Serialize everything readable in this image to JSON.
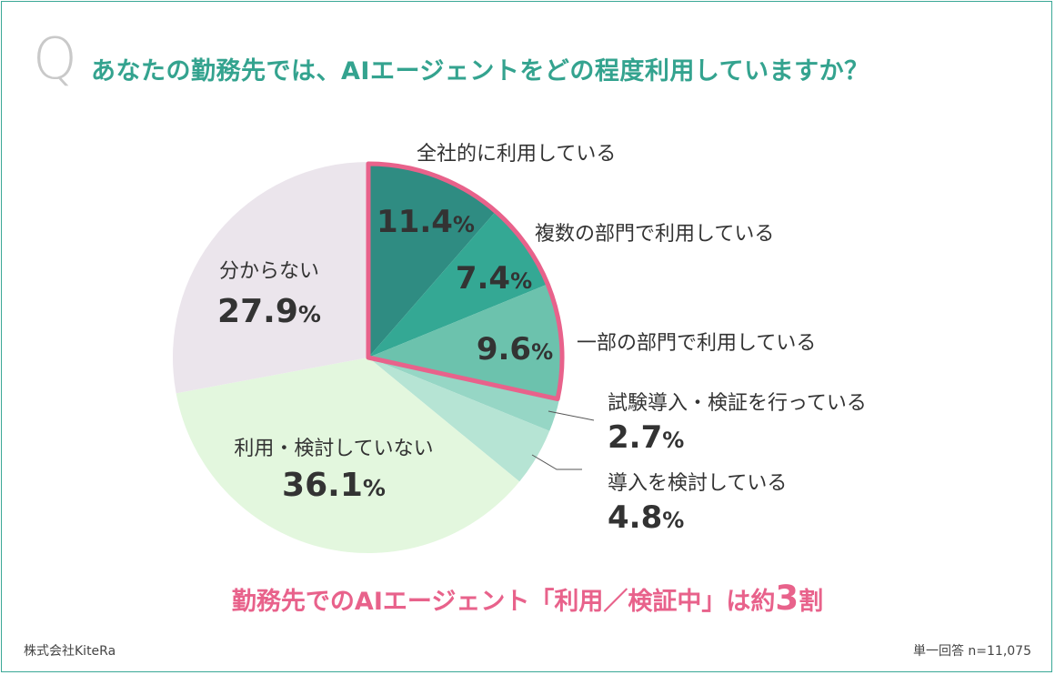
{
  "question": {
    "mark": "Q",
    "text": "あなたの勤務先では、AIエージェントをどの程度利用していますか？"
  },
  "chart_data": {
    "type": "pie",
    "start_angle_deg": 0,
    "direction": "clockwise",
    "slices": [
      {
        "label": "全社的に利用している",
        "value": 11.4,
        "display": "11.4",
        "unit": "%",
        "color": "#2f8c82"
      },
      {
        "label": "複数の部門で利用している",
        "value": 7.4,
        "display": "7.4",
        "unit": "%",
        "color": "#34a894"
      },
      {
        "label": "一部の部門で利用している",
        "value": 9.6,
        "display": "9.6",
        "unit": "%",
        "color": "#6cc2ad"
      },
      {
        "label": "試験導入・検証を行っている",
        "value": 2.7,
        "display": "2.7",
        "unit": "%",
        "color": "#96d6c5"
      },
      {
        "label": "導入を検討している",
        "value": 4.8,
        "display": "4.8",
        "unit": "%",
        "color": "#b6e4d4"
      },
      {
        "label": "利用・検討していない",
        "value": 36.1,
        "display": "36.1",
        "unit": "%",
        "color": "#e3f7de"
      },
      {
        "label": "分からない",
        "value": 27.9,
        "display": "27.9",
        "unit": "%",
        "color": "#ebe5ec"
      }
    ],
    "highlight": {
      "slices": [
        0,
        1,
        2
      ],
      "color": "#e8628b"
    }
  },
  "headline": {
    "text_before": "勤務先でのAIエージェント「利用／検証中」は約",
    "number": "3",
    "text_after": "割"
  },
  "footer": {
    "source": "株式会社KiteRa",
    "note": "単一回答 n=11,075"
  }
}
